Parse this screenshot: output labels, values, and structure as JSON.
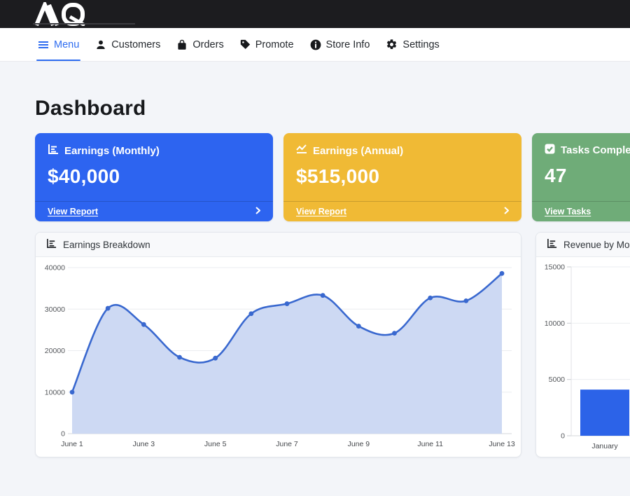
{
  "brand": {
    "logo_text": "AQ"
  },
  "nav": {
    "items": [
      {
        "label": "Menu",
        "icon": "menu-icon",
        "active": true
      },
      {
        "label": "Customers",
        "icon": "person-icon",
        "active": false
      },
      {
        "label": "Orders",
        "icon": "shopping-bag-icon",
        "active": false
      },
      {
        "label": "Promote",
        "icon": "tag-icon",
        "active": false
      },
      {
        "label": "Store Info",
        "icon": "info-circle-icon",
        "active": false
      },
      {
        "label": "Settings",
        "icon": "gear-icon",
        "active": false
      }
    ]
  },
  "page": {
    "title": "Dashboard",
    "background": "#f3f5f9"
  },
  "stat_cards": [
    {
      "title": "Earnings (Monthly)",
      "value": "$40,000",
      "link": "View Report",
      "color": "#2d64f0",
      "icon": "bar-chart-icon"
    },
    {
      "title": "Earnings (Annual)",
      "value": "$515,000",
      "link": "View Report",
      "color": "#f0ba35",
      "icon": "line-chart-icon"
    },
    {
      "title": "Tasks Completed",
      "value": "47",
      "link": "View Tasks",
      "color": "#6fac78",
      "icon": "check-square-icon"
    }
  ],
  "chart_data": [
    {
      "type": "line",
      "title": "Earnings Breakdown",
      "x": [
        "June 1",
        "June 2",
        "June 3",
        "June 4",
        "June 5",
        "June 6",
        "June 7",
        "June 8",
        "June 9",
        "June 10",
        "June 11",
        "June 12",
        "June 13"
      ],
      "values": [
        10000,
        30200,
        26300,
        18400,
        18200,
        28900,
        31300,
        33300,
        25900,
        24200,
        32700,
        32000,
        38600
      ],
      "xtick_labels": [
        "June 1",
        "June 3",
        "June 5",
        "June 7",
        "June 9",
        "June 11",
        "June 13"
      ],
      "ylim": [
        0,
        40000
      ],
      "yticks": [
        0,
        10000,
        20000,
        30000,
        40000
      ],
      "line_color": "#3968cf",
      "fill_color": "#cdd9f3",
      "grid": true,
      "legend": false
    },
    {
      "type": "bar",
      "title": "Revenue by Month",
      "categories": [
        "January"
      ],
      "values": [
        4100
      ],
      "ylim": [
        0,
        15000
      ],
      "yticks": [
        0,
        5000,
        10000,
        15000
      ],
      "bar_color": "#2c63e8",
      "grid": true,
      "legend": false
    }
  ]
}
